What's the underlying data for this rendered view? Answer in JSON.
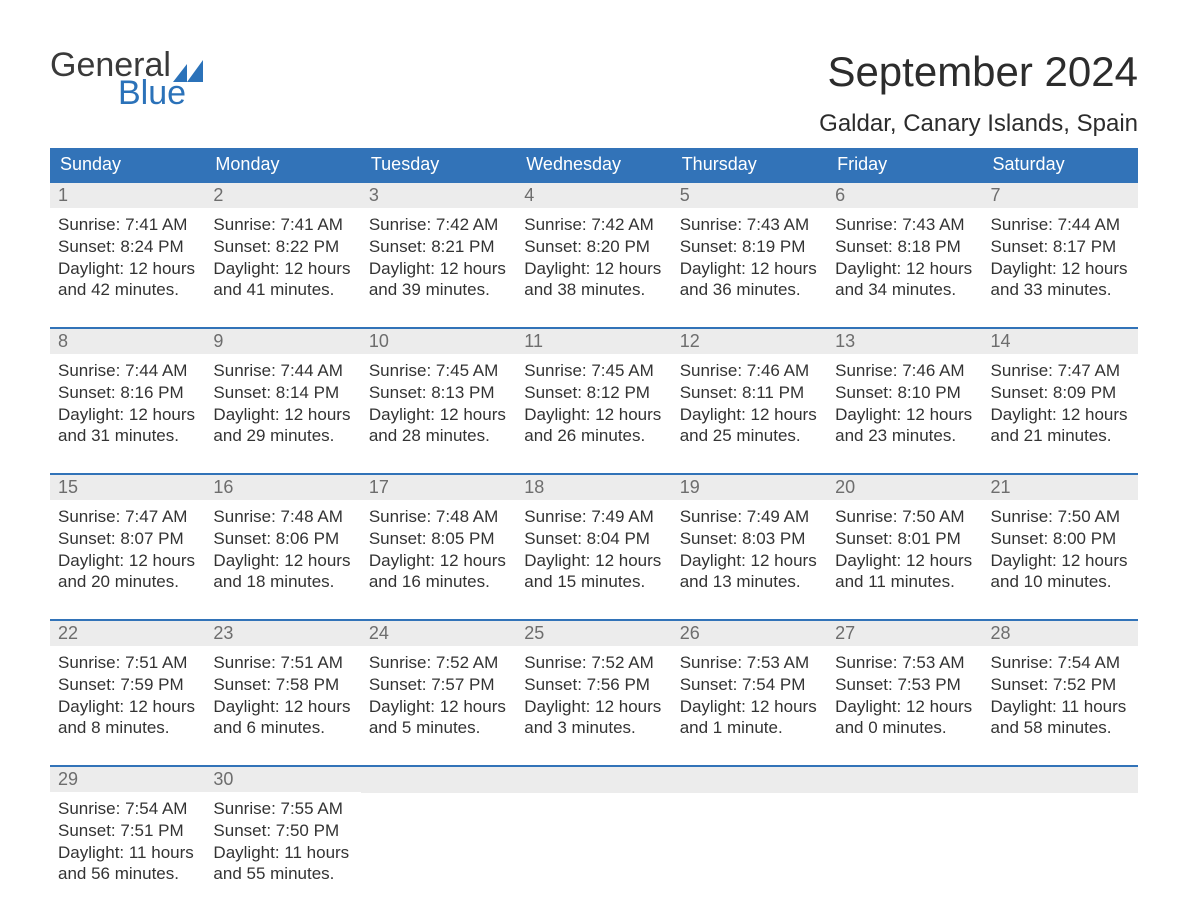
{
  "brand": {
    "word1": "General",
    "word2": "Blue",
    "icon_color": "#2b72b9"
  },
  "title": "September 2024",
  "location": "Galdar, Canary Islands, Spain",
  "colors": {
    "header_bg": "#3273b8",
    "header_text": "#ffffff",
    "daynum_bg": "#ececec",
    "daynum_border": "#3273b8",
    "daynum_text": "#6d6d6d",
    "body_text": "#333333",
    "page_bg": "#ffffff"
  },
  "day_headers": [
    "Sunday",
    "Monday",
    "Tuesday",
    "Wednesday",
    "Thursday",
    "Friday",
    "Saturday"
  ],
  "weeks": [
    [
      {
        "n": "1",
        "sunrise": "Sunrise: 7:41 AM",
        "sunset": "Sunset: 8:24 PM",
        "d1": "Daylight: 12 hours",
        "d2": "and 42 minutes."
      },
      {
        "n": "2",
        "sunrise": "Sunrise: 7:41 AM",
        "sunset": "Sunset: 8:22 PM",
        "d1": "Daylight: 12 hours",
        "d2": "and 41 minutes."
      },
      {
        "n": "3",
        "sunrise": "Sunrise: 7:42 AM",
        "sunset": "Sunset: 8:21 PM",
        "d1": "Daylight: 12 hours",
        "d2": "and 39 minutes."
      },
      {
        "n": "4",
        "sunrise": "Sunrise: 7:42 AM",
        "sunset": "Sunset: 8:20 PM",
        "d1": "Daylight: 12 hours",
        "d2": "and 38 minutes."
      },
      {
        "n": "5",
        "sunrise": "Sunrise: 7:43 AM",
        "sunset": "Sunset: 8:19 PM",
        "d1": "Daylight: 12 hours",
        "d2": "and 36 minutes."
      },
      {
        "n": "6",
        "sunrise": "Sunrise: 7:43 AM",
        "sunset": "Sunset: 8:18 PM",
        "d1": "Daylight: 12 hours",
        "d2": "and 34 minutes."
      },
      {
        "n": "7",
        "sunrise": "Sunrise: 7:44 AM",
        "sunset": "Sunset: 8:17 PM",
        "d1": "Daylight: 12 hours",
        "d2": "and 33 minutes."
      }
    ],
    [
      {
        "n": "8",
        "sunrise": "Sunrise: 7:44 AM",
        "sunset": "Sunset: 8:16 PM",
        "d1": "Daylight: 12 hours",
        "d2": "and 31 minutes."
      },
      {
        "n": "9",
        "sunrise": "Sunrise: 7:44 AM",
        "sunset": "Sunset: 8:14 PM",
        "d1": "Daylight: 12 hours",
        "d2": "and 29 minutes."
      },
      {
        "n": "10",
        "sunrise": "Sunrise: 7:45 AM",
        "sunset": "Sunset: 8:13 PM",
        "d1": "Daylight: 12 hours",
        "d2": "and 28 minutes."
      },
      {
        "n": "11",
        "sunrise": "Sunrise: 7:45 AM",
        "sunset": "Sunset: 8:12 PM",
        "d1": "Daylight: 12 hours",
        "d2": "and 26 minutes."
      },
      {
        "n": "12",
        "sunrise": "Sunrise: 7:46 AM",
        "sunset": "Sunset: 8:11 PM",
        "d1": "Daylight: 12 hours",
        "d2": "and 25 minutes."
      },
      {
        "n": "13",
        "sunrise": "Sunrise: 7:46 AM",
        "sunset": "Sunset: 8:10 PM",
        "d1": "Daylight: 12 hours",
        "d2": "and 23 minutes."
      },
      {
        "n": "14",
        "sunrise": "Sunrise: 7:47 AM",
        "sunset": "Sunset: 8:09 PM",
        "d1": "Daylight: 12 hours",
        "d2": "and 21 minutes."
      }
    ],
    [
      {
        "n": "15",
        "sunrise": "Sunrise: 7:47 AM",
        "sunset": "Sunset: 8:07 PM",
        "d1": "Daylight: 12 hours",
        "d2": "and 20 minutes."
      },
      {
        "n": "16",
        "sunrise": "Sunrise: 7:48 AM",
        "sunset": "Sunset: 8:06 PM",
        "d1": "Daylight: 12 hours",
        "d2": "and 18 minutes."
      },
      {
        "n": "17",
        "sunrise": "Sunrise: 7:48 AM",
        "sunset": "Sunset: 8:05 PM",
        "d1": "Daylight: 12 hours",
        "d2": "and 16 minutes."
      },
      {
        "n": "18",
        "sunrise": "Sunrise: 7:49 AM",
        "sunset": "Sunset: 8:04 PM",
        "d1": "Daylight: 12 hours",
        "d2": "and 15 minutes."
      },
      {
        "n": "19",
        "sunrise": "Sunrise: 7:49 AM",
        "sunset": "Sunset: 8:03 PM",
        "d1": "Daylight: 12 hours",
        "d2": "and 13 minutes."
      },
      {
        "n": "20",
        "sunrise": "Sunrise: 7:50 AM",
        "sunset": "Sunset: 8:01 PM",
        "d1": "Daylight: 12 hours",
        "d2": "and 11 minutes."
      },
      {
        "n": "21",
        "sunrise": "Sunrise: 7:50 AM",
        "sunset": "Sunset: 8:00 PM",
        "d1": "Daylight: 12 hours",
        "d2": "and 10 minutes."
      }
    ],
    [
      {
        "n": "22",
        "sunrise": "Sunrise: 7:51 AM",
        "sunset": "Sunset: 7:59 PM",
        "d1": "Daylight: 12 hours",
        "d2": "and 8 minutes."
      },
      {
        "n": "23",
        "sunrise": "Sunrise: 7:51 AM",
        "sunset": "Sunset: 7:58 PM",
        "d1": "Daylight: 12 hours",
        "d2": "and 6 minutes."
      },
      {
        "n": "24",
        "sunrise": "Sunrise: 7:52 AM",
        "sunset": "Sunset: 7:57 PM",
        "d1": "Daylight: 12 hours",
        "d2": "and 5 minutes."
      },
      {
        "n": "25",
        "sunrise": "Sunrise: 7:52 AM",
        "sunset": "Sunset: 7:56 PM",
        "d1": "Daylight: 12 hours",
        "d2": "and 3 minutes."
      },
      {
        "n": "26",
        "sunrise": "Sunrise: 7:53 AM",
        "sunset": "Sunset: 7:54 PM",
        "d1": "Daylight: 12 hours",
        "d2": "and 1 minute."
      },
      {
        "n": "27",
        "sunrise": "Sunrise: 7:53 AM",
        "sunset": "Sunset: 7:53 PM",
        "d1": "Daylight: 12 hours",
        "d2": "and 0 minutes."
      },
      {
        "n": "28",
        "sunrise": "Sunrise: 7:54 AM",
        "sunset": "Sunset: 7:52 PM",
        "d1": "Daylight: 11 hours",
        "d2": "and 58 minutes."
      }
    ],
    [
      {
        "n": "29",
        "sunrise": "Sunrise: 7:54 AM",
        "sunset": "Sunset: 7:51 PM",
        "d1": "Daylight: 11 hours",
        "d2": "and 56 minutes."
      },
      {
        "n": "30",
        "sunrise": "Sunrise: 7:55 AM",
        "sunset": "Sunset: 7:50 PM",
        "d1": "Daylight: 11 hours",
        "d2": "and 55 minutes."
      },
      null,
      null,
      null,
      null,
      null
    ]
  ]
}
